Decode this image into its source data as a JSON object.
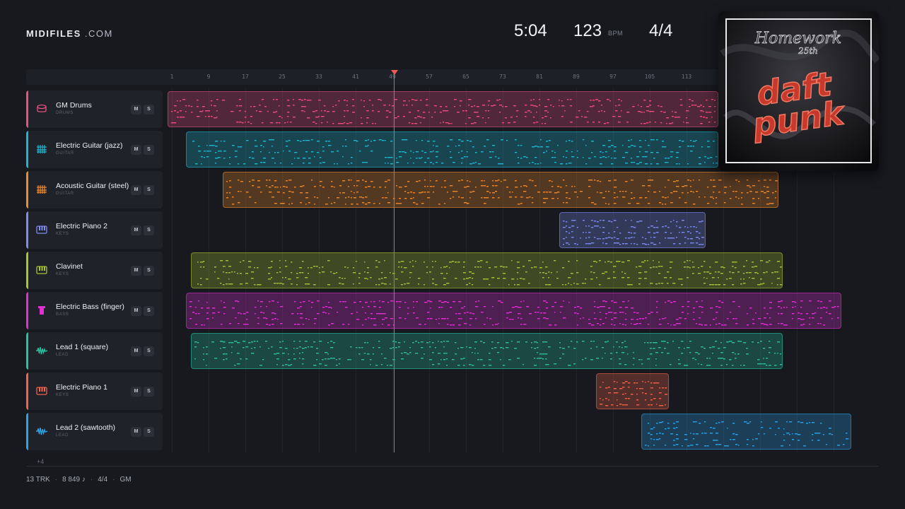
{
  "brand": {
    "name": "MIDIFILES",
    "suffix": ".COM"
  },
  "stats": {
    "duration": "5:04",
    "tempo": "123",
    "tempo_unit": "BPM",
    "time_signature": "4/4"
  },
  "ruler": {
    "ticks": [
      "1",
      "9",
      "17",
      "25",
      "33",
      "41",
      "49",
      "57",
      "65",
      "73",
      "81",
      "89",
      "97",
      "105",
      "113"
    ]
  },
  "playhead": {
    "bar": 49
  },
  "tracks": [
    {
      "name": "GM Drums",
      "category": "DRUMS",
      "color": "#e8507f",
      "icon": "drum-icon",
      "mute": "M",
      "solo": "S"
    },
    {
      "name": "Electric Guitar (jazz)",
      "category": "GUITAR",
      "color": "#1fb6cf",
      "icon": "guitar-icon",
      "mute": "M",
      "solo": "S"
    },
    {
      "name": "Acoustic Guitar (steel)",
      "category": "GUITAR",
      "color": "#ef8a2c",
      "icon": "guitar-icon",
      "mute": "M",
      "solo": "S"
    },
    {
      "name": "Electric Piano 2",
      "category": "KEYS",
      "color": "#7f8df0",
      "icon": "piano-icon",
      "mute": "M",
      "solo": "S"
    },
    {
      "name": "Clavinet",
      "category": "KEYS",
      "color": "#a9c52f",
      "icon": "piano-icon",
      "mute": "M",
      "solo": "S"
    },
    {
      "name": "Electric Bass (finger)",
      "category": "BASS",
      "color": "#e02fd3",
      "icon": "bass-icon",
      "mute": "M",
      "solo": "S"
    },
    {
      "name": "Lead 1 (square)",
      "category": "LEAD",
      "color": "#27c2a0",
      "icon": "wave-icon",
      "mute": "M",
      "solo": "S"
    },
    {
      "name": "Electric Piano 1",
      "category": "KEYS",
      "color": "#f0634c",
      "icon": "piano-icon",
      "mute": "M",
      "solo": "S"
    },
    {
      "name": "Lead 2 (sawtooth)",
      "category": "LEAD",
      "color": "#2ba3e8",
      "icon": "wave-icon",
      "mute": "M",
      "solo": "S"
    }
  ],
  "more_tracks": "+4",
  "footer": {
    "tracks": "13 TRK",
    "notes": "8 849 ♪",
    "meter": "4/4",
    "standard": "GM"
  },
  "cover": {
    "title": "Homework",
    "edition": "25th",
    "artist": "daft punk"
  }
}
